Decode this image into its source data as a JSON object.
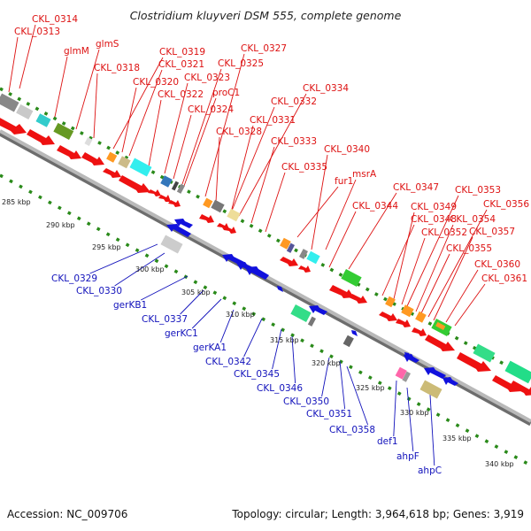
{
  "title": "Clostridium kluyveri DSM 555, complete genome",
  "footer": {
    "accession": "Accession: NC_009706",
    "summary": "Topology: circular; Length: 3,964,618 bp; Genes: 3,919"
  },
  "colors": {
    "forward_label": "#dd1111",
    "reverse_label": "#1111bb",
    "forward_gene": "#ee1111",
    "reverse_gene": "#1111dd",
    "backbone": "#9a9a9a",
    "tick_dots": "#2a8a1a"
  },
  "ticks": [
    "285 kbp",
    "290 kbp",
    "295 kbp",
    "300 kbp",
    "305 kbp",
    "310 kbp",
    "315 kbp",
    "320 kbp",
    "325 kbp",
    "330 kbp",
    "335 kbp",
    "340 kbp"
  ],
  "forward_labels": [
    "CKL_0314",
    "CKL_0313",
    "glmM",
    "glmS",
    "CKL_0318",
    "CKL_0319",
    "CKL_0320",
    "CKL_0321",
    "CKL_0322",
    "CKL_0323",
    "CKL_0324",
    "CKL_0325",
    "CKL_0327",
    "proC1",
    "CKL_0328",
    "CKL_0331",
    "CKL_0332",
    "CKL_0333",
    "CKL_0334",
    "CKL_0335",
    "fur1",
    "CKL_0340",
    "msrA",
    "CKL_0344",
    "CKL_0347",
    "CKL_0348",
    "CKL_0349",
    "CKL_0352",
    "CKL_0353",
    "CKL_0354",
    "CKL_0355",
    "CKL_0356",
    "CKL_0357",
    "CKL_0360",
    "CKL_0361"
  ],
  "reverse_labels": [
    "CKL_0329",
    "CKL_0330",
    "gerKB1",
    "CKL_0337",
    "gerKC1",
    "gerKA1",
    "CKL_0342",
    "CKL_0345",
    "CKL_0346",
    "CKL_0350",
    "CKL_0351",
    "CKL_0358",
    "def1",
    "ahpF",
    "ahpC"
  ]
}
